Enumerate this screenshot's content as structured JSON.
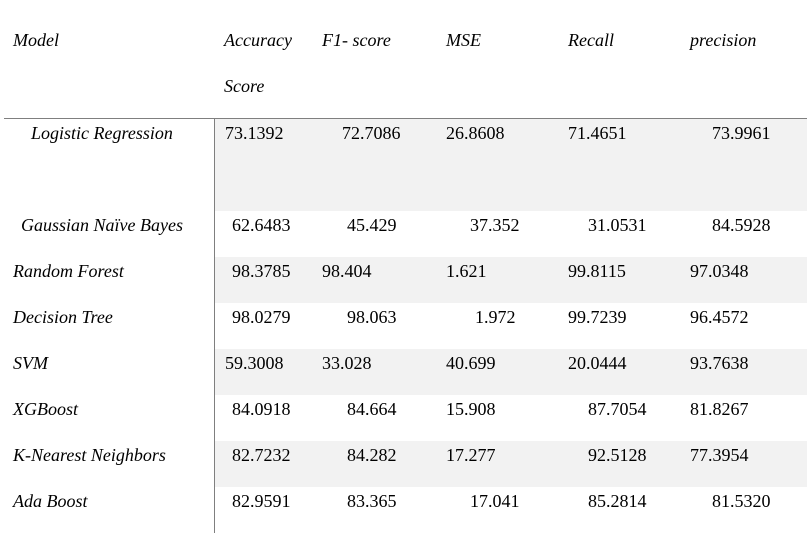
{
  "table": {
    "headers": {
      "model": "Model",
      "accuracy_line1": "Accuracy",
      "accuracy_line2": "Score",
      "f1": "F1- score",
      "mse": "MSE",
      "recall": "Recall",
      "precision": "precision"
    },
    "rows": [
      {
        "model": "Logistic Regression",
        "accuracy": "73.1392",
        "f1": "72.7086",
        "mse": "26.8608",
        "recall": "71.4651",
        "precision": "73.9961"
      },
      {
        "model": "Gaussian Naïve Bayes",
        "accuracy": "62.6483",
        "f1": "45.429",
        "mse": "37.352",
        "recall": "31.0531",
        "precision": "84.5928"
      },
      {
        "model": "Random Forest",
        "accuracy": "98.3785",
        "f1": "98.404",
        "mse": "1.621",
        "recall": "99.8115",
        "precision": "97.0348"
      },
      {
        "model": "Decision Tree",
        "accuracy": "98.0279",
        "f1": "98.063",
        "mse": "1.972",
        "recall": "99.7239",
        "precision": "96.4572"
      },
      {
        "model": "SVM",
        "accuracy": "59.3008",
        "f1": "33.028",
        "mse": "40.699",
        "recall": "20.0444",
        "precision": "93.7638"
      },
      {
        "model": "XGBoost",
        "accuracy": "84.0918",
        "f1": "84.664",
        "mse": "15.908",
        "recall": "87.7054",
        "precision": "81.8267"
      },
      {
        "model": "K-Nearest Neighbors",
        "accuracy": "82.7232",
        "f1": "84.282",
        "mse": "17.277",
        "recall": "92.5128",
        "precision": "77.3954"
      },
      {
        "model": "Ada Boost",
        "accuracy": "82.9591",
        "f1": "83.365",
        "mse": "17.041",
        "recall": "85.2814",
        "precision": "81.5320"
      }
    ]
  }
}
